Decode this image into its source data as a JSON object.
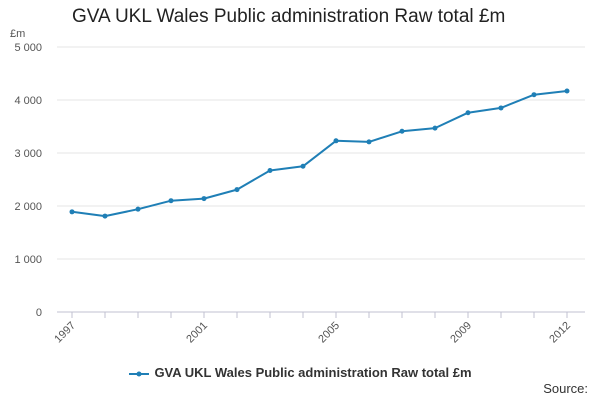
{
  "chart_data": {
    "type": "line",
    "title": "GVA UKL Wales Public administration Raw total £m",
    "ylabel": "£m",
    "xlabel": "",
    "x": [
      1997,
      1998,
      1999,
      2000,
      2001,
      2002,
      2003,
      2004,
      2005,
      2006,
      2007,
      2008,
      2009,
      2010,
      2011,
      2012
    ],
    "series": [
      {
        "name": "GVA UKL Wales Public administration Raw total £m",
        "values": [
          1890,
          1810,
          1940,
          2100,
          2140,
          2310,
          2670,
          2750,
          3230,
          3210,
          3410,
          3470,
          3760,
          3850,
          4100,
          4170
        ],
        "color": "#1f7fb6"
      }
    ],
    "ylim": [
      0,
      5000
    ],
    "yticks": [
      0,
      1000,
      2000,
      3000,
      4000,
      5000
    ],
    "ytick_labels": [
      "0",
      "1 000",
      "2 000",
      "3 000",
      "4 000",
      "5 000"
    ],
    "xticks": [
      1997,
      2001,
      2005,
      2009,
      2012
    ],
    "xtick_labels": [
      "1997",
      "2001",
      "2005",
      "2009",
      "2012"
    ],
    "grid": true,
    "legend": "bottom-center"
  },
  "footer": {
    "source": "Source:"
  },
  "colors": {
    "grid": "#e6e6e6",
    "axis": "#c0c0d0",
    "line": "#1f7fb6"
  }
}
